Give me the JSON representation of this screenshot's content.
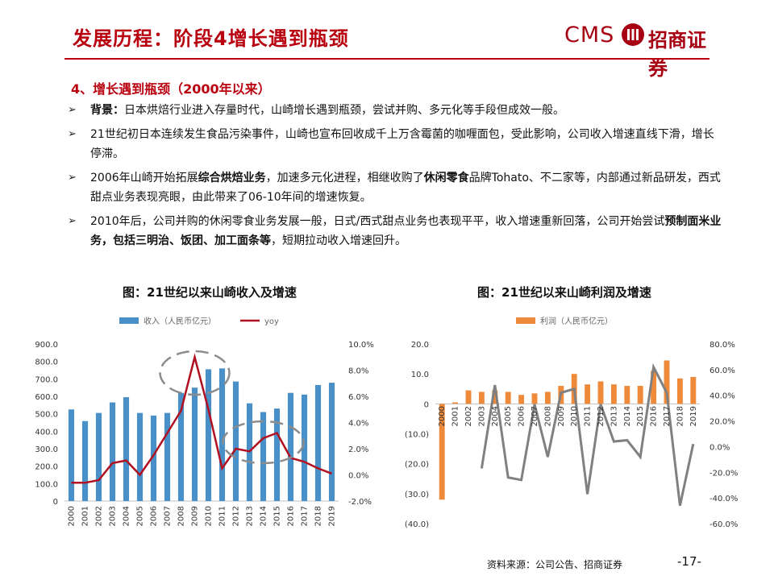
{
  "header": {
    "title": "发展历程：阶段4增长遇到瓶颈",
    "logo_latin": "CMS",
    "logo_cn": "招商证券"
  },
  "section": {
    "heading": "4、增长遇到瓶颈（2000年以来）",
    "bullets": [
      {
        "marker": "➢",
        "lead": "背景：",
        "text": "日本烘焙行业进入存量时代，山崎增长遇到瓶颈，尝试并购、多元化等手段但成效一般。"
      },
      {
        "marker": "➢",
        "lead": "",
        "text": "21世纪初日本连续发生食品污染事件，山崎也宣布回收成千上万含霉菌的咖喱面包，受此影响，公司收入增速直线下滑，增长停滞。"
      },
      {
        "marker": "➢",
        "parts": [
          "2006年山崎开始拓展",
          "综合烘焙业务",
          "，加速多元化进程，相继收购了",
          "休闲零食",
          "品牌Tohato、不二家等，内部通过新品研发，西式甜点业务表现亮眼，由此带来了06-10年间的增速恢复。"
        ]
      },
      {
        "marker": "➢",
        "parts": [
          "2010年后，公司并购的休闲零食业务发展一般，日式/西式甜点业务也表现平平，收入增速重新回落，公司开始尝试",
          "预制面米业务，包括三明治、饭团、加工面条等",
          "，短期拉动收入增速回升。"
        ]
      }
    ]
  },
  "chart_data": [
    {
      "type": "bar",
      "title": "图：21世纪以来山崎收入及增速",
      "categories": [
        "2000",
        "2001",
        "2002",
        "2003",
        "2004",
        "2005",
        "2006",
        "2007",
        "2008",
        "2009",
        "2010",
        "2011",
        "2012",
        "2013",
        "2014",
        "2015",
        "2016",
        "2017",
        "2018",
        "2019"
      ],
      "series": [
        {
          "name": "收入（人民币亿元）",
          "type": "bar",
          "axis": "left",
          "color": "#4a90c8",
          "values": [
            525,
            458,
            505,
            565,
            595,
            505,
            490,
            505,
            620,
            650,
            755,
            760,
            685,
            560,
            510,
            530,
            620,
            610,
            665,
            678
          ]
        },
        {
          "name": "yoy",
          "type": "line",
          "axis": "right",
          "color": "#b01020",
          "values": [
            -0.6,
            -0.6,
            -0.4,
            0.9,
            1.1,
            0.0,
            1.5,
            3.2,
            4.9,
            9.0,
            5.0,
            0.5,
            2.0,
            1.8,
            2.8,
            3.2,
            1.3,
            1.0,
            0.5,
            0.1
          ]
        }
      ],
      "y_left": {
        "min": 0,
        "max": 900,
        "ticks": [
          "0",
          "100.0",
          "200.0",
          "300.0",
          "400.0",
          "500.0",
          "600.0",
          "700.0",
          "800.0",
          "900.0"
        ]
      },
      "y_right": {
        "min": -2,
        "max": 10,
        "ticks": [
          "-2.0%",
          "0.0%",
          "2.0%",
          "4.0%",
          "6.0%",
          "8.0%",
          "10.0%"
        ]
      },
      "annotations": [
        "dashed-ellipse around 2008-2011 peak",
        "dashed-ellipse around 2012-2016 recovery"
      ],
      "legend": "top-center"
    },
    {
      "type": "bar",
      "title": "图：21世纪以来山崎利润及增速",
      "categories": [
        "2000",
        "2001",
        "2002",
        "2003",
        "2004",
        "2005",
        "2006",
        "2007",
        "2008",
        "2009",
        "2010",
        "2011",
        "2012",
        "2013",
        "2014",
        "2015",
        "2016",
        "2017",
        "2018",
        "2019"
      ],
      "series": [
        {
          "name": "利润（人民币亿元）",
          "type": "bar",
          "axis": "left",
          "color": "#ee8a3a",
          "values": [
            -32,
            0.5,
            4.5,
            4.0,
            4.5,
            4.0,
            3.0,
            3.5,
            4.0,
            6.0,
            10.0,
            6.5,
            7.5,
            6.5,
            6.0,
            6.0,
            11.0,
            14.5,
            8.5,
            9.0
          ]
        },
        {
          "name": "增速",
          "type": "line",
          "axis": "right",
          "color": "#808080",
          "values": [
            null,
            null,
            null,
            -17,
            48,
            -24,
            -26,
            33,
            -8,
            42,
            45,
            -37,
            33,
            4,
            5,
            -8,
            62,
            42,
            -46,
            2
          ]
        }
      ],
      "y_left": {
        "min": -40,
        "max": 20,
        "ticks": [
          "(40.0)",
          "(30.0)",
          "(20.0)",
          "(10.0)",
          "0",
          "10.0",
          "20.0"
        ]
      },
      "y_right": {
        "min": -60,
        "max": 80,
        "ticks": [
          "-60.0%",
          "-40.0%",
          "-20.0%",
          "0.0%",
          "20.0%",
          "40.0%",
          "60.0%",
          "80.0%"
        ]
      },
      "legend": "top-center"
    }
  ],
  "footer": {
    "source": "资料来源：公司公告、招商证券",
    "page": "-17-"
  }
}
